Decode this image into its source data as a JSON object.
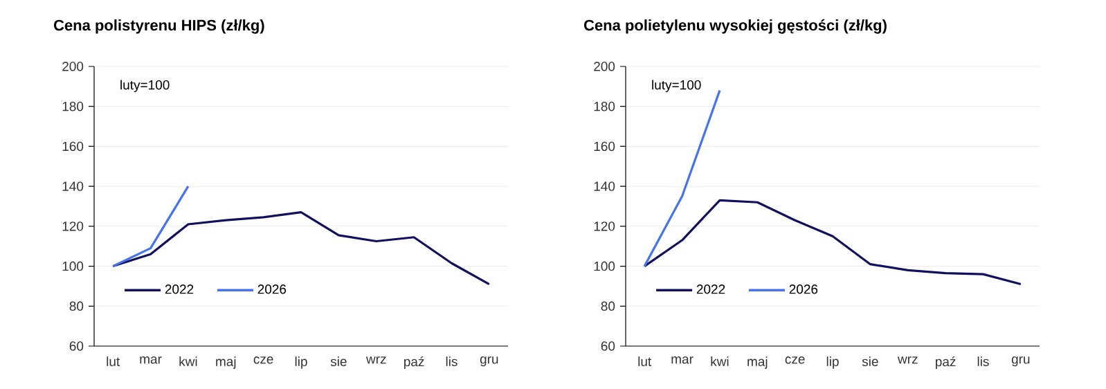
{
  "chart_data": [
    {
      "type": "line",
      "title": "Cena polistyrenu HIPS (zł/kg)",
      "annotations": [
        "luty=100"
      ],
      "categories": [
        "lut",
        "mar",
        "kwi",
        "maj",
        "cze",
        "lip",
        "sie",
        "wrz",
        "paź",
        "lis",
        "gru"
      ],
      "ylim": [
        60,
        200
      ],
      "yticks": [
        60,
        80,
        100,
        120,
        140,
        160,
        180,
        200
      ],
      "grid": "y",
      "legend": "bottom left",
      "series": [
        {
          "name": "2022",
          "color": "#10105e",
          "values": [
            100,
            106,
            121,
            123,
            124.5,
            127,
            115.5,
            112.5,
            114.5,
            101.5,
            91
          ]
        },
        {
          "name": "2026",
          "color": "#4472f0",
          "values": [
            100,
            109,
            140,
            null,
            null,
            null,
            null,
            null,
            null,
            null,
            null
          ]
        }
      ]
    },
    {
      "type": "line",
      "title": "Cena polietylenu wysokiej gęstości (zł/kg)",
      "annotations": [
        "luty=100"
      ],
      "categories": [
        "lut",
        "mar",
        "kwi",
        "maj",
        "cze",
        "lip",
        "sie",
        "wrz",
        "paź",
        "lis",
        "gru"
      ],
      "ylim": [
        60,
        200
      ],
      "yticks": [
        60,
        80,
        100,
        120,
        140,
        160,
        180,
        200
      ],
      "grid": "y",
      "legend": "bottom left",
      "series": [
        {
          "name": "2022",
          "color": "#10105e",
          "values": [
            100,
            113,
            133,
            132,
            123,
            115,
            101,
            98,
            96.5,
            96,
            91
          ]
        },
        {
          "name": "2026",
          "color": "#4472f0",
          "values": [
            100,
            135,
            188,
            null,
            null,
            null,
            null,
            null,
            null,
            null,
            null
          ]
        }
      ]
    }
  ]
}
